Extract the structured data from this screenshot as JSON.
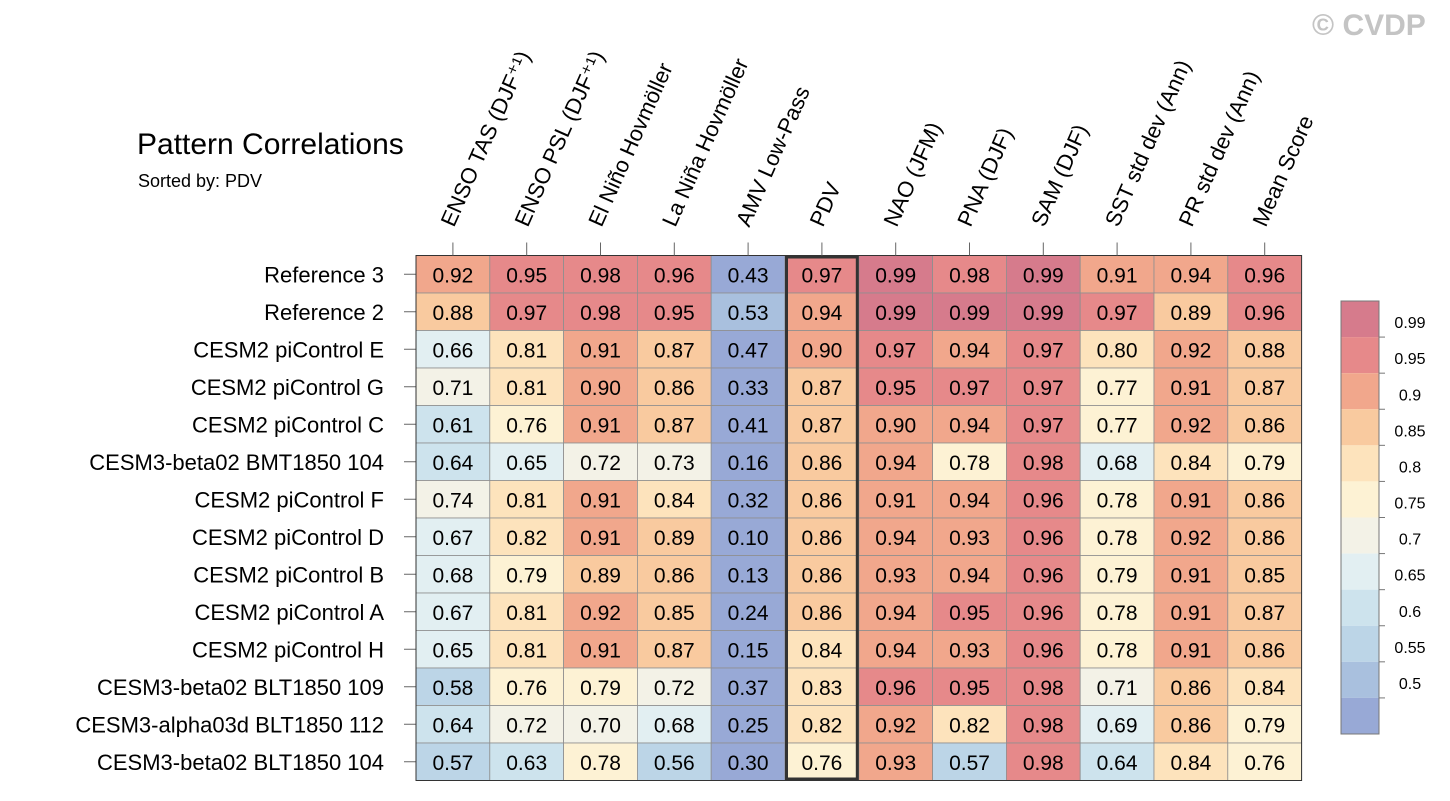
{
  "watermark": "© CVDP",
  "chart_data": {
    "type": "heatmap",
    "title": "Pattern Correlations",
    "subtitle": "Sorted by: PDV",
    "highlight_column": "PDV",
    "columns": [
      "ENSO TAS (DJF⁺¹)",
      "ENSO PSL (DJF⁺¹)",
      "El Niño Hovmöller",
      "La Niña Hovmöller",
      "AMV Low-Pass",
      "PDV",
      "NAO (JFM)",
      "PNA (DJF)",
      "SAM (DJF)",
      "SST std dev (Ann)",
      "PR std dev (Ann)",
      "Mean Score"
    ],
    "rows": [
      {
        "label": "Reference 3",
        "values": [
          "0.92",
          "0.95",
          "0.98",
          "0.96",
          "0.43",
          "0.97",
          "0.99",
          "0.98",
          "0.99",
          "0.91",
          "0.94",
          "0.96"
        ]
      },
      {
        "label": "Reference 2",
        "values": [
          "0.88",
          "0.97",
          "0.98",
          "0.95",
          "0.53",
          "0.94",
          "0.99",
          "0.99",
          "0.99",
          "0.97",
          "0.89",
          "0.96"
        ]
      },
      {
        "label": "CESM2 piControl E",
        "values": [
          "0.66",
          "0.81",
          "0.91",
          "0.87",
          "0.47",
          "0.90",
          "0.97",
          "0.94",
          "0.97",
          "0.80",
          "0.92",
          "0.88"
        ]
      },
      {
        "label": "CESM2 piControl G",
        "values": [
          "0.71",
          "0.81",
          "0.90",
          "0.86",
          "0.33",
          "0.87",
          "0.95",
          "0.97",
          "0.97",
          "0.77",
          "0.91",
          "0.87"
        ]
      },
      {
        "label": "CESM2 piControl C",
        "values": [
          "0.61",
          "0.76",
          "0.91",
          "0.87",
          "0.41",
          "0.87",
          "0.90",
          "0.94",
          "0.97",
          "0.77",
          "0.92",
          "0.86"
        ]
      },
      {
        "label": "CESM3-beta02 BMT1850 104",
        "values": [
          "0.64",
          "0.65",
          "0.72",
          "0.73",
          "0.16",
          "0.86",
          "0.94",
          "0.78",
          "0.98",
          "0.68",
          "0.84",
          "0.79"
        ]
      },
      {
        "label": "CESM2 piControl F",
        "values": [
          "0.74",
          "0.81",
          "0.91",
          "0.84",
          "0.32",
          "0.86",
          "0.91",
          "0.94",
          "0.96",
          "0.78",
          "0.91",
          "0.86"
        ]
      },
      {
        "label": "CESM2 piControl D",
        "values": [
          "0.67",
          "0.82",
          "0.91",
          "0.89",
          "0.10",
          "0.86",
          "0.94",
          "0.93",
          "0.96",
          "0.78",
          "0.92",
          "0.86"
        ]
      },
      {
        "label": "CESM2 piControl B",
        "values": [
          "0.68",
          "0.79",
          "0.89",
          "0.86",
          "0.13",
          "0.86",
          "0.93",
          "0.94",
          "0.96",
          "0.79",
          "0.91",
          "0.85"
        ]
      },
      {
        "label": "CESM2 piControl A",
        "values": [
          "0.67",
          "0.81",
          "0.92",
          "0.85",
          "0.24",
          "0.86",
          "0.94",
          "0.95",
          "0.96",
          "0.78",
          "0.91",
          "0.87"
        ]
      },
      {
        "label": "CESM2 piControl H",
        "values": [
          "0.65",
          "0.81",
          "0.91",
          "0.87",
          "0.15",
          "0.84",
          "0.94",
          "0.93",
          "0.96",
          "0.78",
          "0.91",
          "0.86"
        ]
      },
      {
        "label": "CESM3-beta02 BLT1850 109",
        "values": [
          "0.58",
          "0.76",
          "0.79",
          "0.72",
          "0.37",
          "0.83",
          "0.96",
          "0.95",
          "0.98",
          "0.71",
          "0.86",
          "0.84"
        ]
      },
      {
        "label": "CESM3-alpha03d BLT1850 112",
        "values": [
          "0.64",
          "0.72",
          "0.70",
          "0.68",
          "0.25",
          "0.82",
          "0.92",
          "0.82",
          "0.98",
          "0.69",
          "0.86",
          "0.79"
        ]
      },
      {
        "label": "CESM3-beta02 BLT1850 104",
        "values": [
          "0.57",
          "0.63",
          "0.78",
          "0.56",
          "0.30",
          "0.76",
          "0.93",
          "0.57",
          "0.98",
          "0.64",
          "0.84",
          "0.76"
        ]
      }
    ],
    "colorbar": {
      "ticks": [
        "0.99",
        "0.95",
        "0.9",
        "0.85",
        "0.8",
        "0.75",
        "0.7",
        "0.65",
        "0.6",
        "0.55",
        "0.5"
      ],
      "thresholds": [
        0.5,
        0.55,
        0.6,
        0.65,
        0.7,
        0.75,
        0.8,
        0.85,
        0.9,
        0.95,
        0.99
      ],
      "colors": [
        "#98a9d6",
        "#a9c0de",
        "#bcd5e7",
        "#cde3ed",
        "#e2eff2",
        "#f3f2e7",
        "#fdf2d4",
        "#fde3bc",
        "#f9ca9f",
        "#f1a78c",
        "#e6898a",
        "#d67b8c"
      ]
    }
  }
}
